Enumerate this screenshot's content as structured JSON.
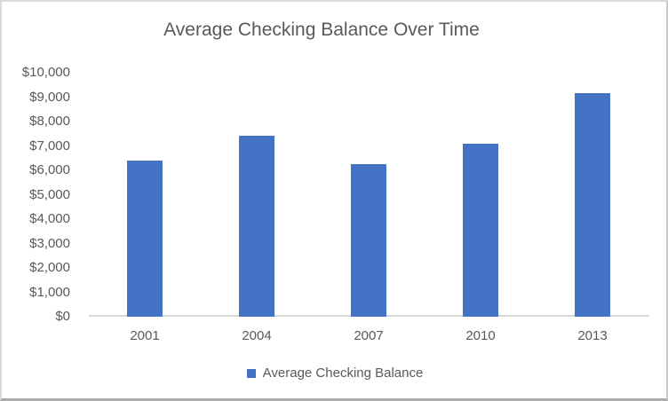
{
  "chart_data": {
    "type": "bar",
    "title": "Average Checking Balance Over Time",
    "categories": [
      "2001",
      "2004",
      "2007",
      "2010",
      "2013"
    ],
    "series": [
      {
        "name": "Average Checking Balance",
        "values": [
          6400,
          7400,
          6250,
          7100,
          9150
        ]
      }
    ],
    "xlabel": "",
    "ylabel": "",
    "ylim": [
      0,
      10000
    ],
    "ytick_interval": 1000,
    "ytick_labels": [
      "$0",
      "$1,000",
      "$2,000",
      "$3,000",
      "$4,000",
      "$5,000",
      "$6,000",
      "$7,000",
      "$8,000",
      "$9,000",
      "$10,000"
    ],
    "grid": false,
    "legend_position": "bottom",
    "colors": {
      "bar": "#4472c4",
      "text": "#595959",
      "axis_line": "#d9d9d9"
    }
  }
}
